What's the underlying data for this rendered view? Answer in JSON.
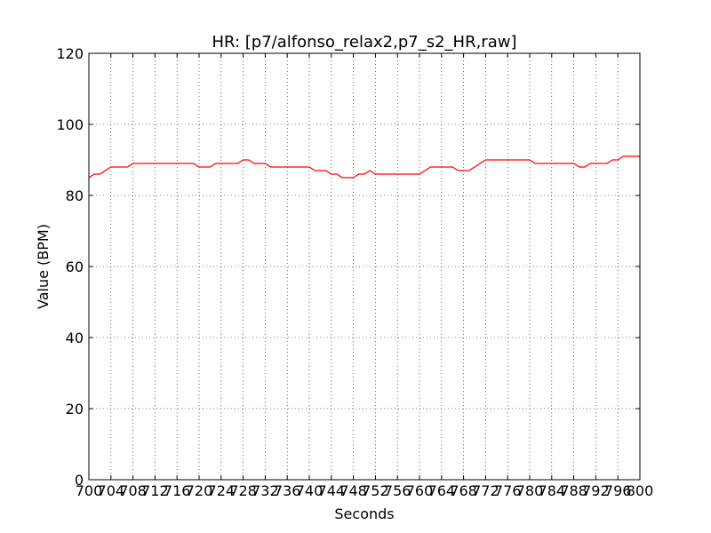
{
  "chart_data": {
    "type": "line",
    "title": "HR: [p7/alfonso_relax2,p7_s2_HR,raw]",
    "xlabel": "Seconds",
    "ylabel": "Value (BPM)",
    "xlim": [
      700,
      800
    ],
    "ylim": [
      0,
      120
    ],
    "grid": true,
    "x_ticks": [
      700,
      704,
      708,
      712,
      716,
      720,
      724,
      728,
      732,
      736,
      740,
      744,
      748,
      752,
      756,
      760,
      764,
      768,
      772,
      776,
      780,
      784,
      788,
      792,
      796,
      800
    ],
    "x_tick_labels": [
      "700",
      "704",
      "708",
      "712",
      "716",
      "720",
      "724",
      "728",
      "732",
      "736",
      "740",
      "744",
      "748",
      "752",
      "756",
      "760",
      "764",
      "768",
      "772",
      "776",
      "780",
      "784",
      "788",
      "792",
      "796",
      "800"
    ],
    "y_ticks": [
      0,
      20,
      40,
      60,
      80,
      100,
      120
    ],
    "y_tick_labels": [
      "0",
      "20",
      "40",
      "60",
      "80",
      "100",
      "120"
    ],
    "series": [
      {
        "color": "#ff0000",
        "x": [
          700,
          701,
          702,
          703,
          704,
          705,
          706,
          707,
          708,
          709,
          710,
          711,
          712,
          713,
          714,
          715,
          716,
          717,
          718,
          719,
          720,
          721,
          722,
          723,
          724,
          725,
          726,
          727,
          728,
          729,
          730,
          731,
          732,
          733,
          734,
          735,
          736,
          737,
          738,
          739,
          740,
          741,
          742,
          743,
          744,
          745,
          746,
          747,
          748,
          749,
          750,
          751,
          752,
          753,
          754,
          755,
          756,
          757,
          758,
          759,
          760,
          761,
          762,
          763,
          764,
          765,
          766,
          767,
          768,
          769,
          770,
          771,
          772,
          773,
          774,
          775,
          776,
          777,
          778,
          779,
          780,
          781,
          782,
          783,
          784,
          785,
          786,
          787,
          788,
          789,
          790,
          791,
          792,
          793,
          794,
          795,
          796,
          797,
          798,
          799,
          800
        ],
        "values": [
          85,
          86,
          86,
          87,
          88,
          88,
          88,
          88,
          89,
          89,
          89,
          89,
          89,
          89,
          89,
          89,
          89,
          89,
          89,
          89,
          88,
          88,
          88,
          89,
          89,
          89,
          89,
          89,
          90,
          90,
          89,
          89,
          89,
          88,
          88,
          88,
          88,
          88,
          88,
          88,
          88,
          87,
          87,
          87,
          86,
          86,
          85,
          85,
          85,
          86,
          86,
          87,
          86,
          86,
          86,
          86,
          86,
          86,
          86,
          86,
          86,
          87,
          88,
          88,
          88,
          88,
          88,
          87,
          87,
          87,
          88,
          89,
          90,
          90,
          90,
          90,
          90,
          90,
          90,
          90,
          90,
          89,
          89,
          89,
          89,
          89,
          89,
          89,
          89,
          88,
          88,
          89,
          89,
          89,
          89,
          90,
          90,
          91,
          91,
          91,
          91
        ]
      }
    ]
  }
}
